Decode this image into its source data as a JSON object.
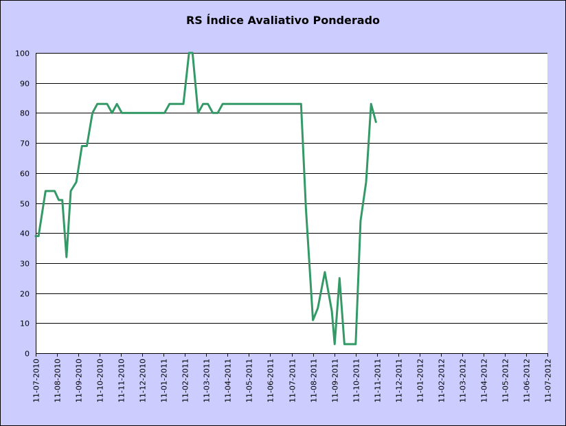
{
  "chart_data": {
    "type": "line",
    "title": "RS Índice Avaliativo Ponderado",
    "xlabel": "",
    "ylabel": "",
    "ylim": [
      0,
      100
    ],
    "yticks": [
      0,
      10,
      20,
      30,
      40,
      50,
      60,
      70,
      80,
      90,
      100
    ],
    "xlim": [
      "2010-07-11",
      "2012-07-11"
    ],
    "xtick_labels": [
      "11-07-2010",
      "11-08-2010",
      "11-09-2010",
      "11-10-2010",
      "11-11-2010",
      "11-12-2010",
      "11-01-2011",
      "11-02-2011",
      "11-03-2011",
      "11-04-2011",
      "11-05-2011",
      "11-06-2011",
      "11-07-2011",
      "11-08-2011",
      "11-09-2011",
      "11-10-2011",
      "11-11-2011",
      "11-12-2011",
      "11-01-2012",
      "11-02-2012",
      "11-03-2012",
      "11-04-2012",
      "11-05-2012",
      "11-06-2012",
      "11-07-2012"
    ],
    "grid": true,
    "colors": {
      "background": "#ccccff",
      "plot_area": "#ffffff",
      "line": "#339966",
      "grid": "#000000"
    },
    "series": [
      {
        "name": "",
        "points": [
          [
            "2010-07-11",
            39
          ],
          [
            "2010-07-15",
            39
          ],
          [
            "2010-07-25",
            54
          ],
          [
            "2010-08-07",
            54
          ],
          [
            "2010-08-13",
            51
          ],
          [
            "2010-08-18",
            51
          ],
          [
            "2010-08-24",
            32
          ],
          [
            "2010-08-30",
            54
          ],
          [
            "2010-09-07",
            57
          ],
          [
            "2010-09-15",
            69
          ],
          [
            "2010-09-22",
            69
          ],
          [
            "2010-09-30",
            80
          ],
          [
            "2010-10-07",
            83
          ],
          [
            "2010-10-21",
            83
          ],
          [
            "2010-10-28",
            80
          ],
          [
            "2010-11-04",
            83
          ],
          [
            "2010-11-11",
            80
          ],
          [
            "2011-01-11",
            80
          ],
          [
            "2011-01-18",
            83
          ],
          [
            "2011-02-07",
            83
          ],
          [
            "2011-02-15",
            100
          ],
          [
            "2011-02-20",
            100
          ],
          [
            "2011-02-28",
            80
          ],
          [
            "2011-03-07",
            83
          ],
          [
            "2011-03-14",
            83
          ],
          [
            "2011-03-21",
            80
          ],
          [
            "2011-03-28",
            80
          ],
          [
            "2011-04-04",
            83
          ],
          [
            "2011-07-25",
            83
          ],
          [
            "2011-08-01",
            48
          ],
          [
            "2011-08-11",
            11
          ],
          [
            "2011-08-18",
            15
          ],
          [
            "2011-08-28",
            27
          ],
          [
            "2011-09-07",
            14
          ],
          [
            "2011-09-11",
            3
          ],
          [
            "2011-09-18",
            25
          ],
          [
            "2011-09-25",
            3
          ],
          [
            "2011-10-11",
            3
          ],
          [
            "2011-10-18",
            44
          ],
          [
            "2011-10-26",
            57
          ],
          [
            "2011-11-02",
            83
          ],
          [
            "2011-11-09",
            77
          ]
        ]
      }
    ]
  }
}
